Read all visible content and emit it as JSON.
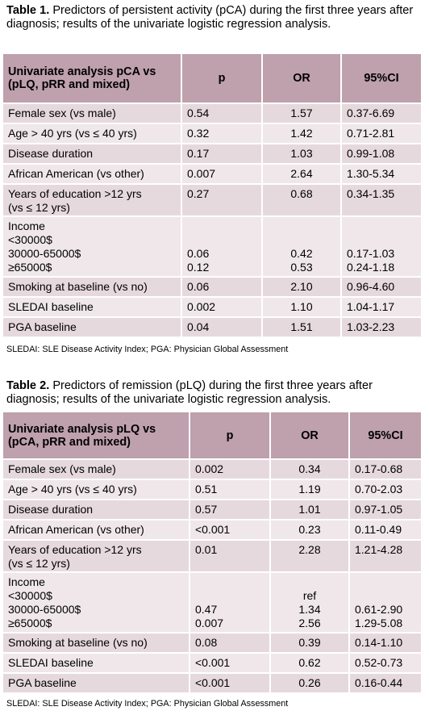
{
  "table1": {
    "caption_bold": "Table 1.",
    "caption_text": " Predictors of persistent activity (pCA) during the first three years after diagnosis; results of the univariate logistic regression analysis.",
    "headers": [
      "Univariate analysis pCA vs (pLQ, pRR and mixed)",
      "p",
      "OR",
      "95%CI"
    ],
    "rows": [
      {
        "label": "Female sex (vs male)",
        "p": "0.54",
        "or": "1.57",
        "ci": "0.37-6.69"
      },
      {
        "label": "Age > 40 yrs (vs ≤ 40 yrs)",
        "p": "0.32",
        "or": "1.42",
        "ci": "0.71-2.81"
      },
      {
        "label": "Disease duration",
        "p": "0.17",
        "or": "1.03",
        "ci": "0.99-1.08"
      },
      {
        "label": "African American (vs other)",
        "p": "0.007",
        "or": "2.64",
        "ci": "1.30-5.34"
      },
      {
        "label": "Years of education >12 yrs\n(vs ≤ 12 yrs)",
        "p": "0.27",
        "or": "0.68",
        "ci": "0.34-1.35"
      },
      {
        "label": "Income\n<30000$\n30000-65000$\n≥65000$",
        "p": "\n\n0.06\n0.12",
        "or": "\n\n0.42\n0.53",
        "ci": "\n\n0.17-1.03\n0.24-1.18"
      },
      {
        "label": "Smoking at baseline (vs no)",
        "p": "0.06",
        "or": "2.10",
        "ci": "0.96-4.60"
      },
      {
        "label": "SLEDAI baseline",
        "p": "0.002",
        "or": "1.10",
        "ci": "1.04-1.17"
      },
      {
        "label": "PGA baseline",
        "p": "0.04",
        "or": "1.51",
        "ci": "1.03-2.23"
      }
    ],
    "footnote": "SLEDAI: SLE Disease Activity Index; PGA: Physician Global Assessment"
  },
  "table2": {
    "caption_bold": "Table 2.",
    "caption_text": " Predictors of remission (pLQ) during the first three years after diagnosis; results of the univariate logistic regression analysis.",
    "headers": [
      "Univariate analysis pLQ vs (pCA, pRR and mixed)",
      "p",
      "OR",
      "95%CI"
    ],
    "rows": [
      {
        "label": "Female sex (vs male)",
        "p": "0.002",
        "or": "0.34",
        "ci": "0.17-0.68"
      },
      {
        "label": "Age > 40 yrs (vs ≤ 40 yrs)",
        "p": "0.51",
        "or": "1.19",
        "ci": "0.70-2.03"
      },
      {
        "label": "Disease duration",
        "p": "0.57",
        "or": "1.01",
        "ci": "0.97-1.05"
      },
      {
        "label": "African American (vs other)",
        "p": "<0.001",
        "or": "0.23",
        "ci": "0.11-0.49"
      },
      {
        "label": "Years of education >12 yrs\n(vs ≤ 12 yrs)",
        "p": "0.01",
        "or": "2.28",
        "ci": "1.21-4.28"
      },
      {
        "label": "Income\n<30000$\n30000-65000$\n≥65000$",
        "p": "\n\n0.47\n0.007",
        "or": "\nref\n1.34\n2.56",
        "ci": "\n\n0.61-2.90\n1.29-5.08"
      },
      {
        "label": "Smoking at baseline (vs no)",
        "p": "0.08",
        "or": "0.39",
        "ci": "0.14-1.10"
      },
      {
        "label": "SLEDAI baseline",
        "p": "<0.001",
        "or": "0.62",
        "ci": "0.52-0.73"
      },
      {
        "label": "PGA baseline",
        "p": "<0.001",
        "or": "0.26",
        "ci": "0.16-0.44"
      }
    ],
    "footnote": "SLEDAI: SLE Disease Activity Index; PGA: Physician Global Assessment"
  }
}
